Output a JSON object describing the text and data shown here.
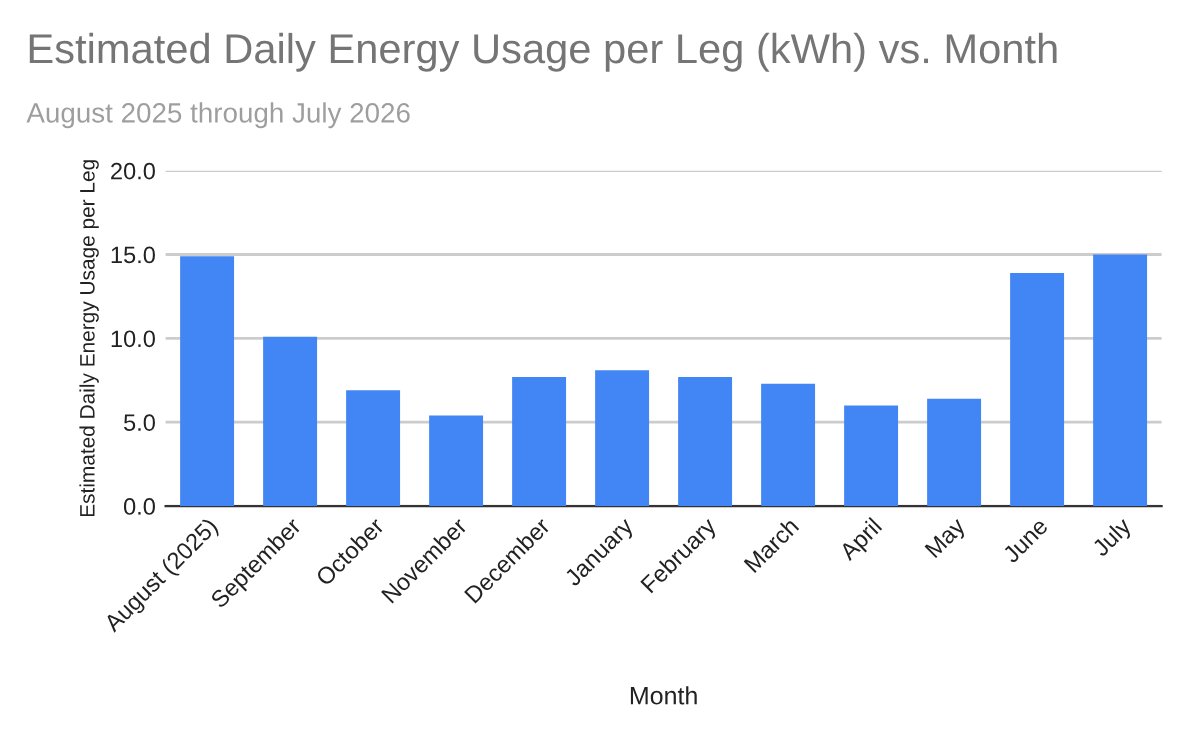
{
  "chart_data": {
    "type": "bar",
    "title": "Estimated Daily Energy Usage per Leg (kWh) vs. Month",
    "subtitle": "August 2025 through July 2026",
    "xlabel": "Month",
    "ylabel": "Estimated Daily Energy Usage per Leg",
    "categories": [
      "August (2025)",
      "September",
      "October",
      "November",
      "December",
      "January",
      "February",
      "March",
      "April",
      "May",
      "June",
      "July"
    ],
    "values": [
      14.9,
      10.1,
      6.9,
      5.4,
      7.7,
      8.1,
      7.7,
      7.3,
      6.0,
      6.4,
      13.9,
      15.0
    ],
    "color": "#4285f4",
    "ylim": [
      0,
      20
    ],
    "yticks": [
      {
        "value": 0,
        "label": "0.0"
      },
      {
        "value": 5,
        "label": "5.0"
      },
      {
        "value": 10,
        "label": "10.0"
      },
      {
        "value": 15,
        "label": "15.0"
      },
      {
        "value": 20,
        "label": "20.0"
      }
    ],
    "grid": "y",
    "legend": false
  }
}
